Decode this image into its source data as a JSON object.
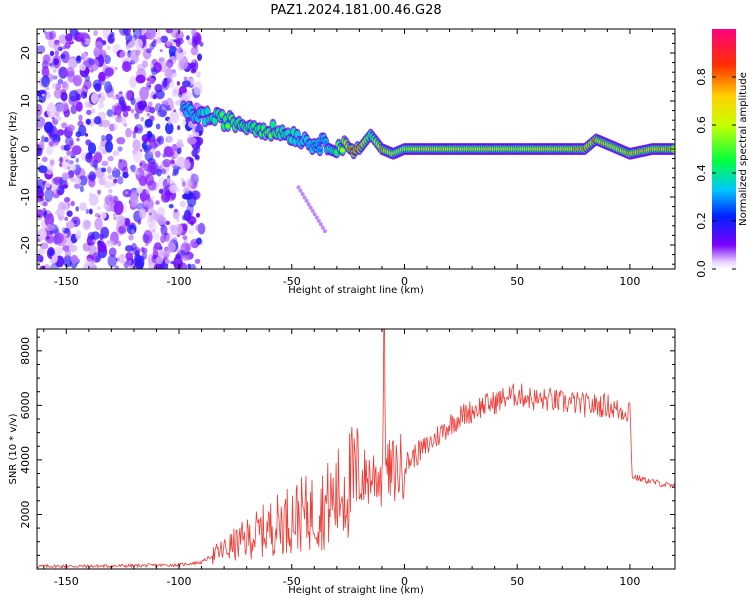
{
  "title": "PAZ1.2024.181.00.46.G28",
  "chart_data": [
    {
      "type": "heatmap",
      "name": "spectrogram",
      "xlabel": "Height of straight line (km)",
      "ylabel": "Frequency (Hz)",
      "xlim": [
        -163,
        120
      ],
      "ylim": [
        -25,
        25
      ],
      "xticks": [
        -150,
        -100,
        -50,
        0,
        50,
        100
      ],
      "yticks": [
        -20,
        -10,
        0,
        10,
        20
      ],
      "colorbar": {
        "label": "Normalized spectral amplitude",
        "range": [
          0,
          1
        ],
        "ticks": [
          0.0,
          0.2,
          0.4,
          0.6,
          0.8
        ],
        "colormap": "gist_rainbow_r"
      },
      "signal_trace": {
        "x": [
          -98,
          -90,
          -80,
          -70,
          -60,
          -50,
          -45,
          -40,
          -35,
          -30,
          -25,
          -20,
          -15,
          -10,
          -5,
          0,
          10,
          20,
          30,
          40,
          50,
          60,
          70,
          80,
          85,
          90,
          95,
          100,
          110,
          120
        ],
        "y": [
          8,
          7,
          6,
          5,
          4,
          3,
          2,
          1,
          1,
          0.5,
          0.5,
          0,
          3,
          0,
          -1,
          0,
          0,
          0,
          0,
          0,
          0,
          0,
          0,
          0,
          2,
          1,
          0,
          -1,
          0,
          0
        ],
        "amplitude": [
          0.3,
          0.35,
          0.5,
          0.45,
          0.5,
          0.4,
          0.35,
          0.3,
          0.3,
          0.5,
          0.8,
          0.9,
          0.4,
          0.8,
          0.6,
          0.6,
          0.7,
          0.7,
          0.65,
          0.7,
          0.65,
          0.7,
          0.7,
          0.8,
          0.8,
          0.7,
          0.7,
          0.75,
          0.75,
          0.75
        ]
      },
      "noise_region": {
        "x_from": -163,
        "x_to": -90,
        "y_from": -25,
        "y_to": 25
      }
    },
    {
      "type": "line",
      "name": "snr",
      "xlabel": "Height of straight line (km)",
      "ylabel": "SNR (10 * v/v)",
      "xlim": [
        -163,
        120
      ],
      "ylim": [
        0,
        8800
      ],
      "xticks": [
        -150,
        -100,
        -50,
        0,
        50,
        100
      ],
      "yticks": [
        2000,
        4000,
        6000,
        8000
      ],
      "color": "#ee3b36",
      "series": [
        {
          "x": [
            -163,
            -140,
            -120,
            -100,
            -90,
            -85,
            -80,
            -75,
            -70,
            -65,
            -60,
            -55,
            -50,
            -45,
            -40,
            -35,
            -30,
            -28,
            -25,
            -22,
            -20,
            -15,
            -12,
            -10,
            -9,
            -8,
            -5,
            0,
            5,
            10,
            15,
            20,
            25,
            30,
            35,
            40,
            45,
            50,
            55,
            58,
            60,
            65,
            70,
            75,
            80,
            85,
            90,
            95,
            99,
            100,
            101,
            105,
            110,
            115,
            120
          ],
          "values": [
            100,
            100,
            120,
            150,
            250,
            500,
            700,
            900,
            1100,
            1300,
            1500,
            1700,
            1900,
            2000,
            2100,
            2300,
            2600,
            2900,
            3100,
            3200,
            3300,
            3400,
            3500,
            3300,
            8700,
            3500,
            3600,
            3800,
            4200,
            4500,
            4900,
            5300,
            5600,
            5800,
            6000,
            6100,
            6300,
            6400,
            6300,
            6200,
            6200,
            6200,
            6100,
            6100,
            6000,
            6000,
            6000,
            5800,
            5800,
            6000,
            3400,
            3300,
            3200,
            3100,
            3000
          ]
        }
      ]
    }
  ]
}
